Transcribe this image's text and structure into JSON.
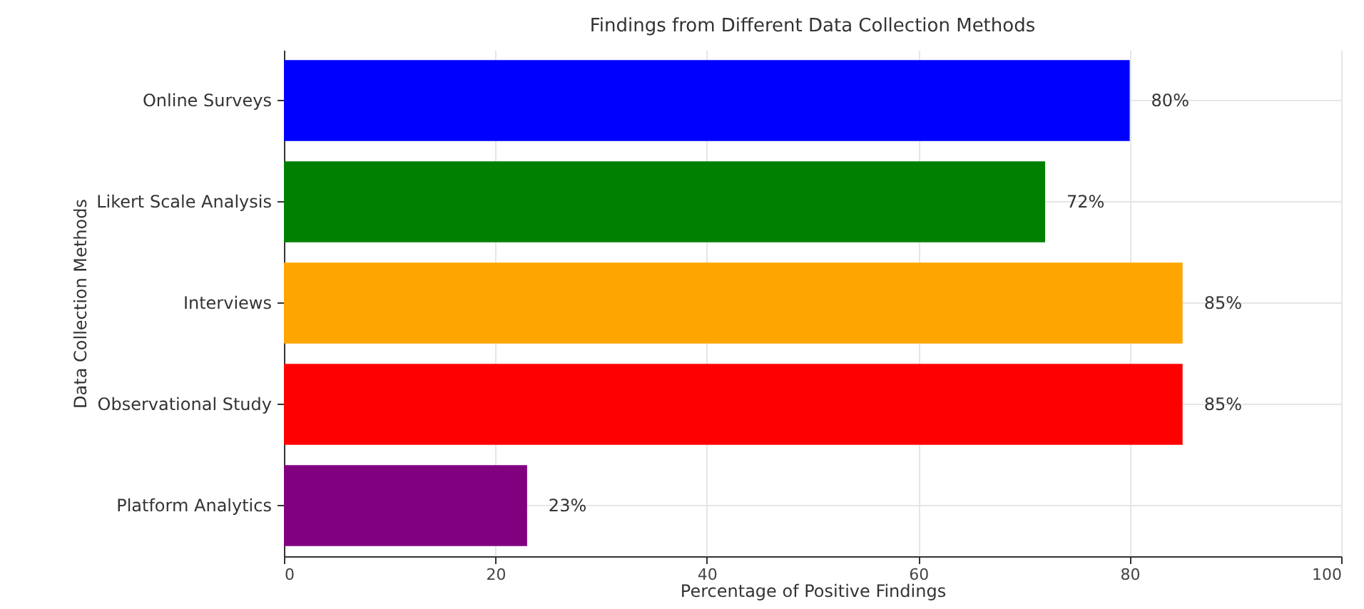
{
  "chart_data": {
    "type": "bar",
    "orientation": "horizontal",
    "title": "Findings from Different Data Collection Methods",
    "xlabel": "Percentage of Positive Findings",
    "ylabel": "Data Collection Methods",
    "categories": [
      "Online Surveys",
      "Likert Scale Analysis",
      "Interviews",
      "Observational Study",
      "Platform Analytics"
    ],
    "values": [
      80,
      72,
      85,
      85,
      23
    ],
    "colors": [
      "#0000ff",
      "#008000",
      "#ffa500",
      "#ff0000",
      "#800080"
    ],
    "value_labels": [
      "80%",
      "72%",
      "85%",
      "85%",
      "23%"
    ],
    "xlim": [
      0,
      100
    ],
    "xticks": [
      0,
      20,
      40,
      60,
      80,
      100
    ],
    "grid": true
  }
}
